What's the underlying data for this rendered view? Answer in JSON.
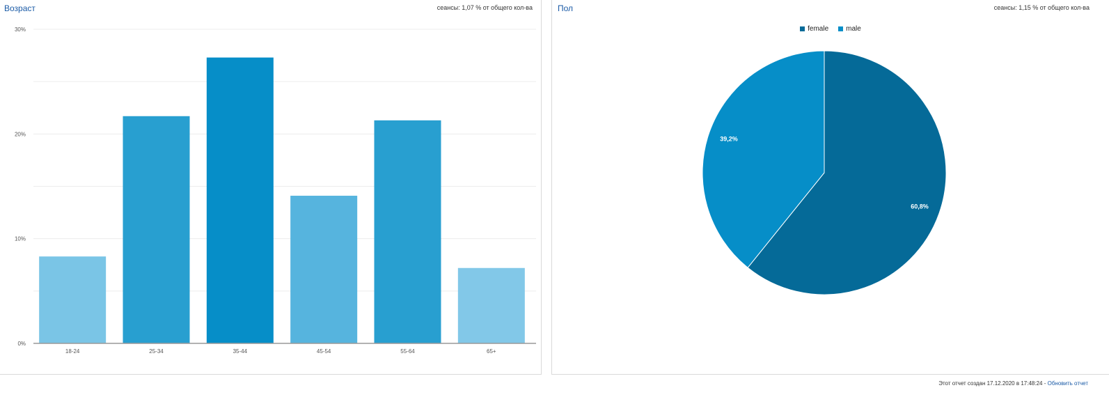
{
  "age_panel": {
    "title": "Возраст",
    "meta": "сеансы: 1,07 % от общего кол-ва"
  },
  "gender_panel": {
    "title": "Пол",
    "meta": "сеансы: 1,15 % от общего кол-ва"
  },
  "footer": {
    "text": "Этот отчет создан 17.12.2020 в 17:48:24 -",
    "link": "Обновить отчет"
  },
  "chart_data": [
    {
      "type": "bar",
      "categories": [
        "18-24",
        "25-34",
        "35-44",
        "45-54",
        "55-64",
        "65+"
      ],
      "values": [
        8.3,
        21.7,
        27.3,
        14.1,
        21.3,
        7.2
      ],
      "colors": [
        "#7ac5e6",
        "#289fd0",
        "#068ec8",
        "#56b4de",
        "#289fd0",
        "#82c8e8"
      ],
      "ylim": [
        0,
        30
      ],
      "yticks": [
        0,
        10,
        20,
        30
      ],
      "ytick_labels": [
        "0%",
        "10%",
        "20%",
        "30%"
      ],
      "grid": true
    },
    {
      "type": "pie",
      "labels": [
        "female",
        "male"
      ],
      "values": [
        60.8,
        39.2
      ],
      "value_labels": [
        "60,8%",
        "39,2%"
      ],
      "colors": [
        "#056a98",
        "#068ec8"
      ],
      "legend": "top"
    }
  ]
}
